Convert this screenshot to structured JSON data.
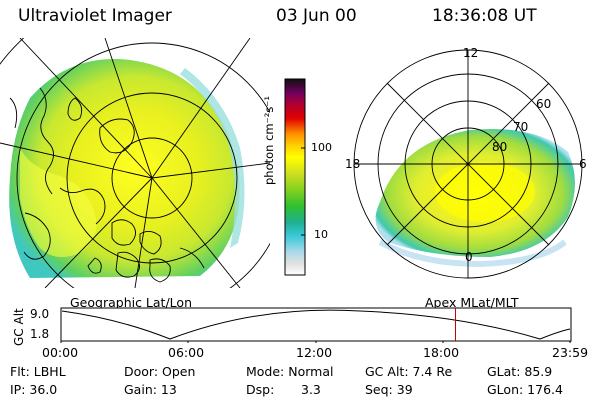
{
  "header": {
    "instrument": "Ultraviolet Imager",
    "date": "03 Jun 00",
    "time": "18:36:08 UT"
  },
  "colorbar": {
    "unit_label": "photon cm⁻²s⁻¹",
    "tick_100": "100",
    "tick_10": "10",
    "colors": [
      "#ffffff",
      "#e8e8e8",
      "#b8d8e8",
      "#40c8d8",
      "#20b0a0",
      "#30c030",
      "#80d020",
      "#d0e020",
      "#ffff00",
      "#ffd000",
      "#ff8000",
      "#e00000",
      "#b00030",
      "#800060",
      "#400050",
      "#101010"
    ]
  },
  "left_panel": {
    "caption": "Geographic Lat/Lon"
  },
  "right_panel": {
    "caption": "Apex MLat/MLT",
    "mlt_12": "12",
    "mlt_18": "18",
    "mlt_6": "6",
    "mlt_0": "0",
    "lat_60": "60",
    "lat_70": "70",
    "lat_80": "80"
  },
  "altitude_plot": {
    "ylabel": "GC Alt",
    "ymax": "9.0",
    "ymin": "1.8",
    "ticks": [
      "00:00",
      "06:00",
      "12:00",
      "18:00",
      "23:59"
    ],
    "current_marker_hours": 18.6
  },
  "footer": {
    "flt": "Flt: LBHL",
    "ip": "IP: 36.0",
    "door": "Door: Open",
    "gain": "Gain: 13",
    "mode": "Mode: Normal",
    "dsp_label": "Dsp:",
    "dsp_value": "3.3",
    "gcalt": "GC Alt: 7.4 Re",
    "seq": "Seq: 39",
    "glat": "GLat: 85.9",
    "glon": "GLon: 176.4"
  }
}
